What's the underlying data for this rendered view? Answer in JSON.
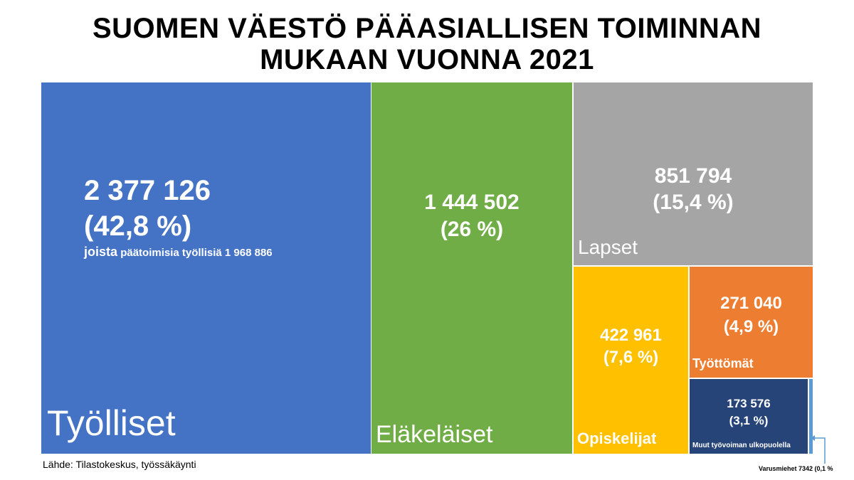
{
  "title": {
    "line1": "SUOMEN VÄESTÖ PÄÄASIALLISEN TOIMINNAN",
    "line2": "MUKAAN VUONNA 2021"
  },
  "source": "Lähde: Tilastokeskus, työssäkäynti",
  "colors": {
    "tyolliset": "#4472C4",
    "elakelaiset": "#70AD47",
    "lapset": "#A5A5A5",
    "opiskelijat": "#FFC000",
    "tyottomat": "#ED7D31",
    "muut": "#264478",
    "varusmiehet": "#5B9BD5"
  },
  "chart_data": {
    "type": "treemap",
    "title": "SUOMEN VÄESTÖ PÄÄASIALLISEN TOIMINNAN MUKAAN VUONNA 2021",
    "series": [
      {
        "name": "Työlliset",
        "value": 2377126,
        "value_label": "2 377 126",
        "percent_label": "(42,8 %)",
        "note_bold": "joista",
        "note": "päätoimisia työllisiä 1 968 886"
      },
      {
        "name": "Eläkeläiset",
        "value": 1444502,
        "value_label": "1 444 502",
        "percent_label": "(26 %)"
      },
      {
        "name": "Lapset",
        "value": 851794,
        "value_label": "851 794",
        "percent_label": "(15,4 %)"
      },
      {
        "name": "Opiskelijat",
        "value": 422961,
        "value_label": "422 961",
        "percent_label": "(7,6 %)"
      },
      {
        "name": "Työttömät",
        "value": 271040,
        "value_label": "271 040",
        "percent_label": "(4,9 %)"
      },
      {
        "name": "Muut työvoiman ulkopuolella",
        "value": 173576,
        "value_label": "173 576",
        "percent_label": "(3,1 %)"
      },
      {
        "name": "Varusmiehet",
        "value": 7342,
        "callout": "Varusmiehet  7342  (0,1 %"
      }
    ]
  }
}
